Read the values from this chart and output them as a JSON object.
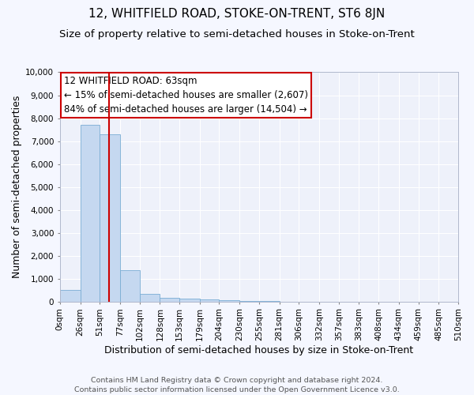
{
  "title": "12, WHITFIELD ROAD, STOKE-ON-TRENT, ST6 8JN",
  "subtitle": "Size of property relative to semi-detached houses in Stoke-on-Trent",
  "xlabel": "Distribution of semi-detached houses by size in Stoke-on-Trent",
  "ylabel": "Number of semi-detached properties",
  "footer_line1": "Contains HM Land Registry data © Crown copyright and database right 2024.",
  "footer_line2": "Contains public sector information licensed under the Open Government Licence v3.0.",
  "bin_edges": [
    0,
    26,
    51,
    77,
    102,
    128,
    153,
    179,
    204,
    230,
    255,
    281,
    306,
    332,
    357,
    383,
    408,
    434,
    459,
    485,
    510
  ],
  "bar_heights": [
    510,
    7700,
    7280,
    1380,
    325,
    155,
    120,
    100,
    58,
    18,
    8,
    4,
    3,
    1,
    1,
    0,
    0,
    0,
    0,
    0
  ],
  "bar_color": "#c5d8f0",
  "bar_edge_color": "#7aadd4",
  "property_size": 63,
  "red_line_color": "#cc0000",
  "annotation_text_line1": "12 WHITFIELD ROAD: 63sqm",
  "annotation_text_line2": "← 15% of semi-detached houses are smaller (2,607)",
  "annotation_text_line3": "84% of semi-detached houses are larger (14,504) →",
  "ylim": [
    0,
    10000
  ],
  "yticks": [
    0,
    1000,
    2000,
    3000,
    4000,
    5000,
    6000,
    7000,
    8000,
    9000,
    10000
  ],
  "bg_color": "#f5f7ff",
  "plot_bg_color": "#eef1fa",
  "grid_color": "#ffffff",
  "title_fontsize": 11,
  "subtitle_fontsize": 9.5,
  "axis_label_fontsize": 9,
  "tick_fontsize": 7.5,
  "annotation_fontsize": 8.5,
  "footer_fontsize": 6.8
}
